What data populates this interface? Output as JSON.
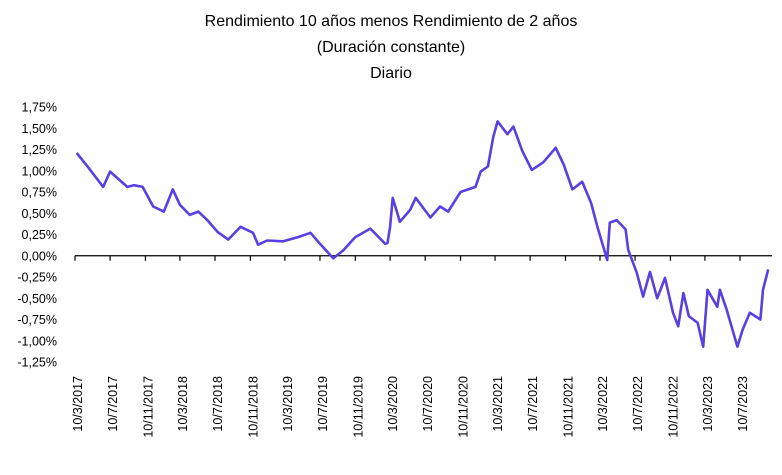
{
  "chart_data": {
    "type": "line",
    "title": [
      "Rendimiento 10 años menos Rendimiento de 2 años",
      "(Duración constante)",
      "Diario"
    ],
    "xlabel": "",
    "ylabel": "",
    "ylim": [
      -1.25,
      1.75
    ],
    "y_ticks": [
      1.75,
      1.5,
      1.25,
      1.0,
      0.75,
      0.5,
      0.25,
      0.0,
      -0.25,
      -0.5,
      -0.75,
      -1.0,
      -1.25
    ],
    "y_tick_labels": [
      "1,75%",
      "1,50%",
      "1,25%",
      "1,00%",
      "0,75%",
      "0,50%",
      "0,25%",
      "0,00%",
      "-0,25%",
      "-0,50%",
      "-0,75%",
      "-1,00%",
      "-1,25%"
    ],
    "x_ticks": [
      "2017-03-10",
      "2017-07-10",
      "2017-11-10",
      "2018-03-10",
      "2018-07-10",
      "2018-11-10",
      "2019-03-10",
      "2019-07-10",
      "2019-11-10",
      "2020-03-10",
      "2020-07-10",
      "2020-11-10",
      "2021-03-10",
      "2021-07-10",
      "2021-11-10",
      "2022-03-10",
      "2022-07-10",
      "2022-11-10",
      "2023-03-10",
      "2023-07-10"
    ],
    "x_tick_labels": [
      "10/3/2017",
      "10/7/2017",
      "10/11/2017",
      "10/3/2018",
      "10/7/2018",
      "10/11/2018",
      "10/3/2019",
      "10/7/2019",
      "10/11/2019",
      "10/3/2020",
      "10/7/2020",
      "10/11/2020",
      "10/3/2021",
      "10/7/2021",
      "10/11/2021",
      "10/3/2022",
      "10/7/2022",
      "10/11/2022",
      "10/3/2023",
      "10/7/2023"
    ],
    "grid": false,
    "line_color": "#5B3FE0",
    "series": [
      {
        "x": [
          "2017-03-16",
          "2017-04-25",
          "2017-06-16",
          "2017-07-10",
          "2017-09-08",
          "2017-10-01",
          "2017-10-31",
          "2017-12-07",
          "2018-01-13",
          "2018-02-13",
          "2018-03-10",
          "2018-04-13",
          "2018-05-13",
          "2018-06-13",
          "2018-07-19",
          "2018-08-25",
          "2018-10-07",
          "2018-11-19",
          "2018-12-07",
          "2019-01-07",
          "2019-03-04",
          "2019-04-25",
          "2019-06-07",
          "2019-07-10",
          "2019-08-25",
          "2019-09-28",
          "2019-11-10",
          "2020-01-01",
          "2020-02-22",
          "2020-03-01",
          "2020-03-10",
          "2020-03-19",
          "2020-04-13",
          "2020-05-19",
          "2020-06-07",
          "2020-07-28",
          "2020-08-31",
          "2020-09-28",
          "2020-11-10",
          "2021-01-01",
          "2021-01-19",
          "2021-02-13",
          "2021-03-04",
          "2021-03-19",
          "2021-04-22",
          "2021-05-13",
          "2021-06-13",
          "2021-07-16",
          "2021-08-25",
          "2021-10-07",
          "2021-11-04",
          "2021-12-04",
          "2022-01-07",
          "2022-02-07",
          "2022-03-01",
          "2022-04-04",
          "2022-04-13",
          "2022-05-07",
          "2022-06-07",
          "2022-06-16",
          "2022-07-16",
          "2022-08-07",
          "2022-08-31",
          "2022-09-25",
          "2022-10-22",
          "2022-11-19",
          "2022-12-07",
          "2022-12-25",
          "2023-01-13",
          "2023-02-13",
          "2023-03-04",
          "2023-03-19",
          "2023-04-22",
          "2023-05-01",
          "2023-05-25",
          "2023-07-01",
          "2023-07-19",
          "2023-08-13",
          "2023-09-19",
          "2023-09-28",
          "2023-10-16"
        ],
        "y": [
          1.21,
          1.04,
          0.81,
          0.99,
          0.81,
          0.83,
          0.81,
          0.58,
          0.52,
          0.78,
          0.6,
          0.48,
          0.52,
          0.42,
          0.28,
          0.19,
          0.34,
          0.27,
          0.13,
          0.18,
          0.17,
          0.22,
          0.27,
          0.14,
          -0.03,
          0.06,
          0.22,
          0.32,
          0.14,
          0.15,
          0.34,
          0.68,
          0.4,
          0.54,
          0.68,
          0.45,
          0.58,
          0.52,
          0.75,
          0.81,
          0.99,
          1.05,
          1.4,
          1.58,
          1.43,
          1.52,
          1.23,
          1.01,
          1.1,
          1.27,
          1.07,
          0.78,
          0.87,
          0.62,
          0.34,
          -0.05,
          0.39,
          0.42,
          0.31,
          0.07,
          -0.2,
          -0.48,
          -0.19,
          -0.5,
          -0.26,
          -0.67,
          -0.83,
          -0.44,
          -0.71,
          -0.79,
          -1.07,
          -0.4,
          -0.6,
          -0.4,
          -0.64,
          -1.07,
          -0.87,
          -0.67,
          -0.75,
          -0.4,
          -0.16
        ]
      }
    ]
  }
}
